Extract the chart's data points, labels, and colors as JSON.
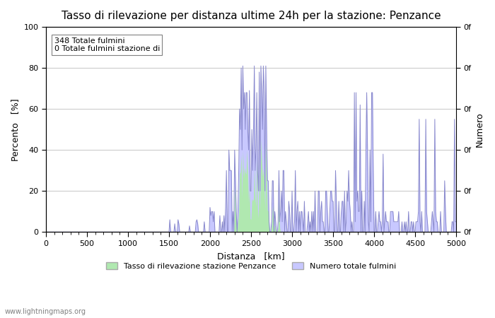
{
  "title": "Tasso di rilevazione per distanza ultime 24h per la stazione: Penzance",
  "xlabel": "Distanza   [km]",
  "ylabel_left": "Percento   [%]",
  "ylabel_right": "Numero",
  "annotation_line1": "348 Totale fulmini",
  "annotation_line2": "0 Totale fulmini stazione di",
  "xlim": [
    0,
    5000
  ],
  "ylim": [
    0,
    100
  ],
  "xticks": [
    0,
    500,
    1000,
    1500,
    2000,
    2500,
    3000,
    3500,
    4000,
    4500,
    5000
  ],
  "yticks_left": [
    0,
    20,
    40,
    60,
    80,
    100
  ],
  "right_ytick_labels": [
    "0f",
    "0f",
    "0f",
    "0f",
    "0f",
    "0f"
  ],
  "legend_label_green": "Tasso di rilevazione stazione Penzance",
  "legend_label_blue": "Numero totale fulmini",
  "watermark": "www.lightningmaps.org",
  "fill_color_blue": "#c8c8ff",
  "fill_color_green": "#b0e8b0",
  "line_color": "#8888cc",
  "background_color": "#ffffff",
  "grid_color": "#cccccc",
  "title_fontsize": 11,
  "axis_fontsize": 9,
  "tick_fontsize": 8
}
